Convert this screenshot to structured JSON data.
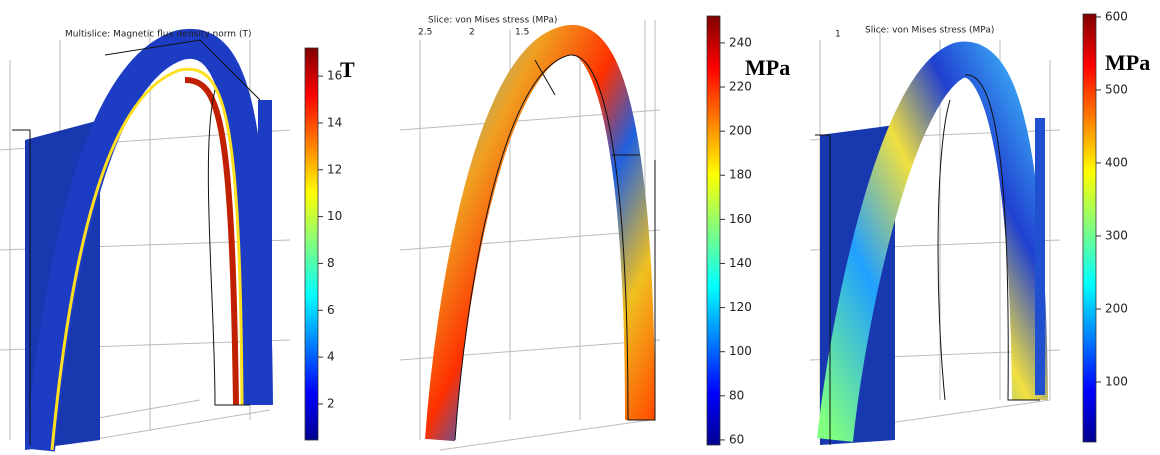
{
  "panels": [
    {
      "title": "Multislice: Magnetic flux density norm (T)",
      "unit": "T",
      "range": [
        0.46,
        17.2
      ],
      "ticks": [
        2,
        4,
        6,
        8,
        10,
        12,
        14,
        16
      ],
      "axis_labels": []
    },
    {
      "title": "Slice: von Mises stress (MPa)",
      "unit": "MPa",
      "range": [
        57.7,
        252.2
      ],
      "ticks": [
        60,
        80,
        100,
        120,
        140,
        160,
        180,
        200,
        220,
        240
      ],
      "axis_labels": [
        "2.5",
        "2",
        "1.5"
      ]
    },
    {
      "title": "Slice: von Mises stress (MPa)",
      "unit": "MPa",
      "range": [
        17.8,
        604
      ],
      "ticks": [
        100,
        200,
        300,
        400,
        500,
        600
      ],
      "axis_labels": [
        "1"
      ]
    }
  ]
}
